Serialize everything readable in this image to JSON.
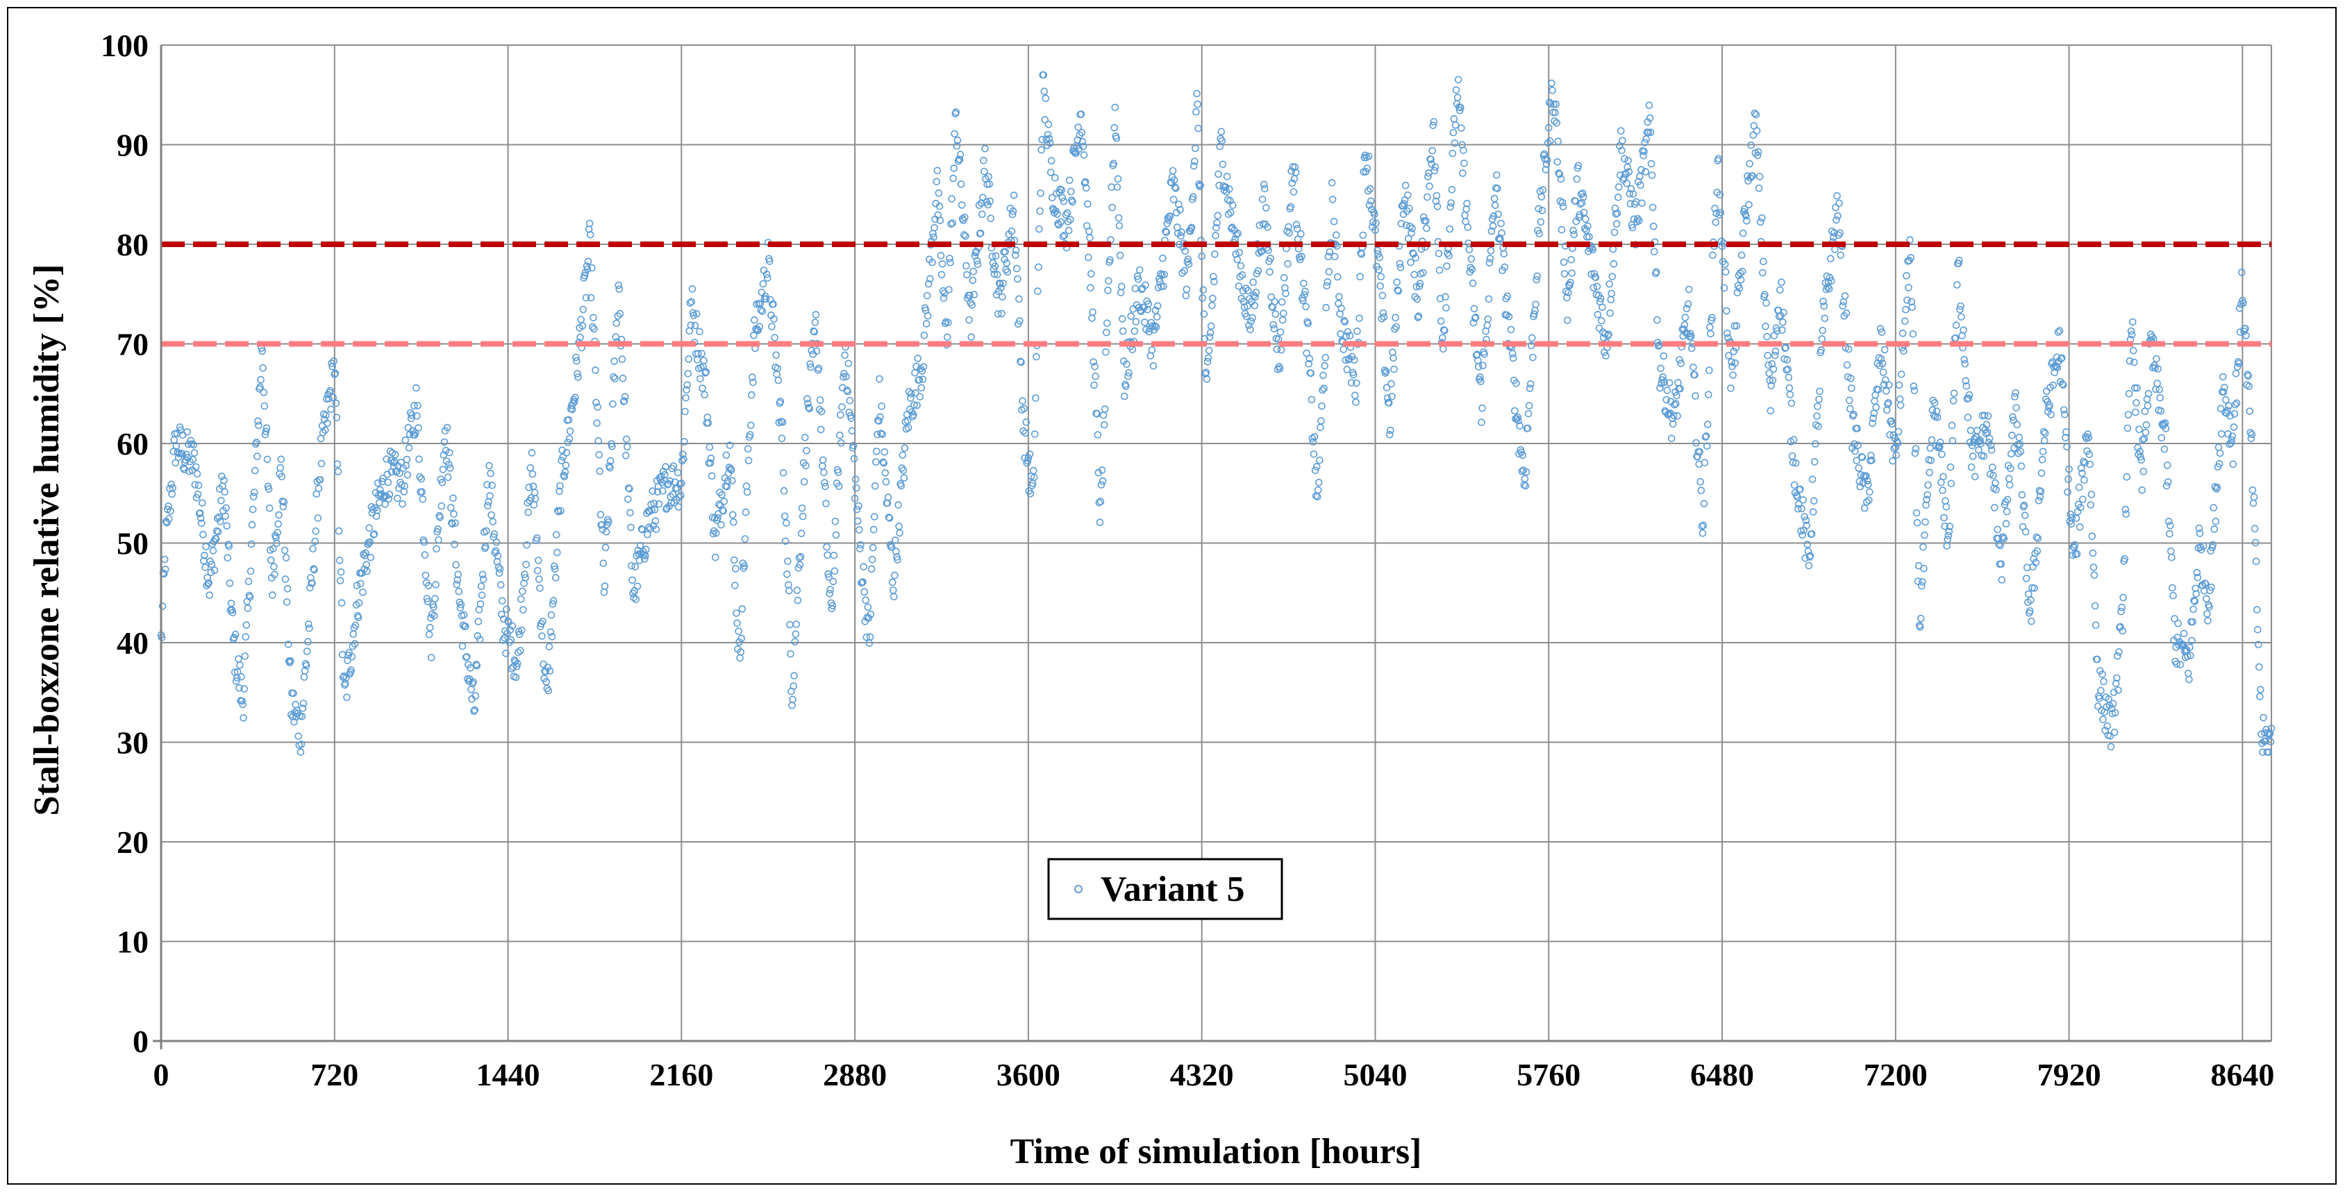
{
  "chart_data": {
    "type": "scatter",
    "title": "",
    "xlabel": "Time of simulation [hours]",
    "ylabel": "Stall-boxzone relative humidity [%]",
    "xlim": [
      0,
      8760
    ],
    "ylim": [
      0,
      100
    ],
    "x_ticks": [
      "0",
      "720",
      "1440",
      "2160",
      "2880",
      "3600",
      "4320",
      "5040",
      "5760",
      "6480",
      "7200",
      "7920",
      "8640"
    ],
    "y_ticks": [
      "0",
      "10",
      "20",
      "30",
      "40",
      "50",
      "60",
      "70",
      "80",
      "90",
      "100"
    ],
    "grid": true,
    "legend": {
      "position": "bottom-left-center",
      "entries": [
        "Variant 5"
      ]
    },
    "colors": {
      "series": "#5b9bd5",
      "upper_limit": "#c00000",
      "lower_limit": "#ff7c80",
      "grid": "#8c8c8c"
    },
    "reference_lines": [
      {
        "y": 80,
        "style": "dashed",
        "color": "#c00000"
      },
      {
        "y": 70,
        "style": "dashed",
        "color": "#ff7c80"
      }
    ],
    "series": [
      {
        "name": "Variant 5",
        "marker": "open-circle",
        "trend_points": [
          [
            0,
            40
          ],
          [
            20,
            50
          ],
          [
            60,
            60
          ],
          [
            140,
            58
          ],
          [
            200,
            46
          ],
          [
            260,
            56
          ],
          [
            300,
            40
          ],
          [
            340,
            34
          ],
          [
            380,
            52
          ],
          [
            420,
            70
          ],
          [
            460,
            46
          ],
          [
            500,
            58
          ],
          [
            540,
            34
          ],
          [
            580,
            31
          ],
          [
            620,
            44
          ],
          [
            660,
            58
          ],
          [
            720,
            68
          ],
          [
            760,
            34
          ],
          [
            820,
            45
          ],
          [
            880,
            52
          ],
          [
            940,
            57
          ],
          [
            1000,
            56
          ],
          [
            1060,
            64
          ],
          [
            1120,
            40
          ],
          [
            1180,
            62
          ],
          [
            1240,
            44
          ],
          [
            1300,
            33
          ],
          [
            1360,
            57
          ],
          [
            1420,
            42
          ],
          [
            1480,
            38
          ],
          [
            1540,
            58
          ],
          [
            1600,
            34
          ],
          [
            1660,
            56
          ],
          [
            1720,
            66
          ],
          [
            1780,
            80
          ],
          [
            1840,
            45
          ],
          [
            1900,
            76
          ],
          [
            1960,
            45
          ],
          [
            2020,
            52
          ],
          [
            2100,
            56
          ],
          [
            2160,
            56
          ],
          [
            2200,
            74
          ],
          [
            2260,
            66
          ],
          [
            2300,
            50
          ],
          [
            2360,
            60
          ],
          [
            2400,
            38
          ],
          [
            2460,
            70
          ],
          [
            2520,
            78
          ],
          [
            2580,
            60
          ],
          [
            2620,
            35
          ],
          [
            2680,
            62
          ],
          [
            2720,
            72
          ],
          [
            2780,
            42
          ],
          [
            2840,
            70
          ],
          [
            2900,
            50
          ],
          [
            2940,
            40
          ],
          [
            2980,
            65
          ],
          [
            3040,
            46
          ],
          [
            3100,
            63
          ],
          [
            3160,
            68
          ],
          [
            3220,
            86
          ],
          [
            3260,
            70
          ],
          [
            3300,
            93
          ],
          [
            3360,
            72
          ],
          [
            3420,
            88
          ],
          [
            3480,
            74
          ],
          [
            3540,
            84
          ],
          [
            3580,
            62
          ],
          [
            3620,
            54
          ],
          [
            3660,
            96
          ],
          [
            3700,
            86
          ],
          [
            3760,
            82
          ],
          [
            3820,
            94
          ],
          [
            3860,
            76
          ],
          [
            3900,
            52
          ],
          [
            3960,
            94
          ],
          [
            4000,
            66
          ],
          [
            4060,
            76
          ],
          [
            4120,
            70
          ],
          [
            4200,
            86
          ],
          [
            4260,
            76
          ],
          [
            4300,
            94
          ],
          [
            4340,
            64
          ],
          [
            4400,
            90
          ],
          [
            4460,
            80
          ],
          [
            4520,
            72
          ],
          [
            4580,
            84
          ],
          [
            4640,
            68
          ],
          [
            4700,
            88
          ],
          [
            4760,
            70
          ],
          [
            4800,
            54
          ],
          [
            4860,
            84
          ],
          [
            4900,
            72
          ],
          [
            4960,
            66
          ],
          [
            5000,
            90
          ],
          [
            5060,
            76
          ],
          [
            5100,
            62
          ],
          [
            5160,
            86
          ],
          [
            5220,
            74
          ],
          [
            5280,
            92
          ],
          [
            5320,
            70
          ],
          [
            5380,
            96
          ],
          [
            5440,
            76
          ],
          [
            5480,
            64
          ],
          [
            5540,
            86
          ],
          [
            5600,
            70
          ],
          [
            5660,
            56
          ],
          [
            5720,
            82
          ],
          [
            5780,
            96
          ],
          [
            5840,
            74
          ],
          [
            5880,
            86
          ],
          [
            5940,
            78
          ],
          [
            6000,
            70
          ],
          [
            6060,
            90
          ],
          [
            6120,
            82
          ],
          [
            6180,
            92
          ],
          [
            6220,
            68
          ],
          [
            6280,
            62
          ],
          [
            6340,
            74
          ],
          [
            6400,
            52
          ],
          [
            6460,
            88
          ],
          [
            6520,
            66
          ],
          [
            6580,
            84
          ],
          [
            6620,
            92
          ],
          [
            6680,
            64
          ],
          [
            6720,
            76
          ],
          [
            6780,
            58
          ],
          [
            6840,
            48
          ],
          [
            6900,
            72
          ],
          [
            6960,
            84
          ],
          [
            7020,
            62
          ],
          [
            7080,
            54
          ],
          [
            7140,
            70
          ],
          [
            7200,
            58
          ],
          [
            7260,
            80
          ],
          [
            7300,
            42
          ],
          [
            7360,
            64
          ],
          [
            7420,
            50
          ],
          [
            7460,
            78
          ],
          [
            7520,
            58
          ],
          [
            7580,
            62
          ],
          [
            7640,
            48
          ],
          [
            7700,
            64
          ],
          [
            7760,
            42
          ],
          [
            7820,
            62
          ],
          [
            7880,
            70
          ],
          [
            7940,
            48
          ],
          [
            8000,
            62
          ],
          [
            8040,
            36
          ],
          [
            8100,
            31
          ],
          [
            8140,
            42
          ],
          [
            8180,
            72
          ],
          [
            8220,
            56
          ],
          [
            8260,
            70
          ],
          [
            8320,
            60
          ],
          [
            8360,
            40
          ],
          [
            8420,
            38
          ],
          [
            8460,
            50
          ],
          [
            8500,
            44
          ],
          [
            8560,
            66
          ],
          [
            8600,
            60
          ],
          [
            8640,
            76
          ],
          [
            8680,
            58
          ],
          [
            8720,
            30
          ],
          [
            8760,
            30
          ]
        ]
      }
    ]
  }
}
